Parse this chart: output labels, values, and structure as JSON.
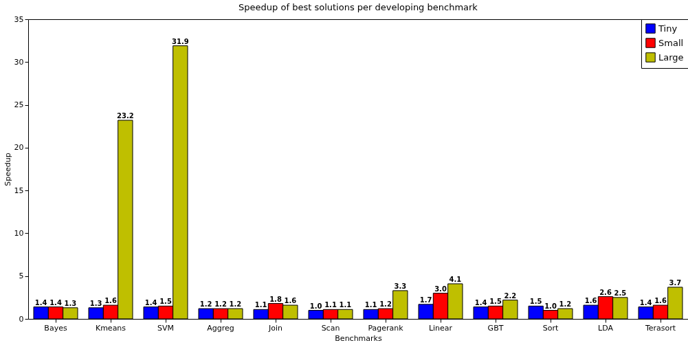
{
  "chart_data": {
    "type": "bar",
    "title": "Speedup of best solutions per developing benchmark",
    "xlabel": "Benchmarks",
    "ylabel": "Speedup",
    "categories": [
      "Bayes",
      "Kmeans",
      "SVM",
      "Aggreg",
      "Join",
      "Scan",
      "Pagerank",
      "Linear",
      "GBT",
      "Sort",
      "LDA",
      "Terasort"
    ],
    "series": [
      {
        "name": "Tiny",
        "color": "#0000ff",
        "values": [
          1.4,
          1.3,
          1.4,
          1.2,
          1.1,
          1.0,
          1.1,
          1.7,
          1.4,
          1.5,
          1.6,
          1.4
        ],
        "value_labels": [
          "1.4",
          "1.3",
          "1.4",
          "1.2",
          "1.1",
          "1.0",
          "1.1",
          "1.7",
          "1.4",
          "1.5",
          "1.6",
          "1.4"
        ]
      },
      {
        "name": "Small",
        "color": "#ff0000",
        "values": [
          1.4,
          1.6,
          1.5,
          1.2,
          1.8,
          1.1,
          1.2,
          3.0,
          1.5,
          1.0,
          2.6,
          1.6
        ],
        "value_labels": [
          "1.4",
          "1.6",
          "1.5",
          "1.2",
          "1.8",
          "1.1",
          "1.2",
          "3.0",
          "1.5",
          "1.0",
          "2.6",
          "1.6"
        ]
      },
      {
        "name": "Large",
        "color": "#bfbf00",
        "values": [
          1.3,
          23.2,
          31.9,
          1.2,
          1.6,
          1.1,
          3.3,
          4.1,
          2.2,
          1.2,
          2.5,
          3.7
        ],
        "value_labels": [
          "1.3",
          "23.2",
          "31.9",
          "1.2",
          "1.6",
          "1.1",
          "3.3",
          "4.1",
          "2.2",
          "1.2",
          "2.5",
          "3.7"
        ]
      }
    ],
    "ylim": [
      0,
      35
    ],
    "yticks": [
      0,
      5,
      10,
      15,
      20,
      25,
      30,
      35
    ],
    "grid": false,
    "legend": "top right"
  }
}
